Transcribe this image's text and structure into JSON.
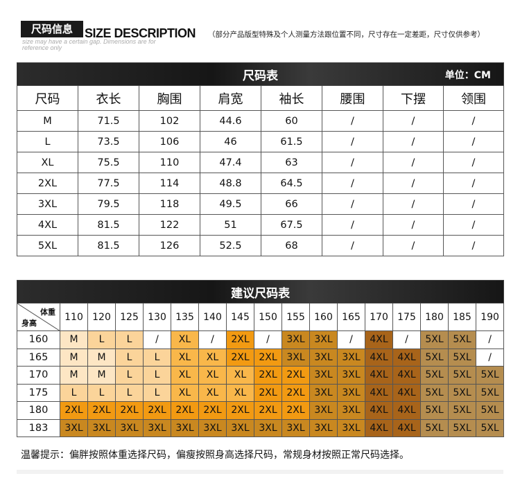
{
  "header": {
    "badge": "尺码信息",
    "title_en": "SIZE DESCRIPTION",
    "note_cn": "（部分产品版型特殊及个人测量方法跟位置不同，尺寸存在一定差距，尺寸仅供参考）",
    "sub_en": "size may have a certain gap. Dimensions are for reference only"
  },
  "size_table": {
    "title": "尺码表",
    "unit": "单位：CM",
    "headers": [
      "尺码",
      "衣长",
      "胸围",
      "肩宽",
      "袖长",
      "腰围",
      "下摆",
      "领围"
    ],
    "rows": [
      [
        "M",
        "71.5",
        "102",
        "44.6",
        "60",
        "/",
        "/",
        "/"
      ],
      [
        "L",
        "73.5",
        "106",
        "46",
        "61.5",
        "/",
        "/",
        "/"
      ],
      [
        "XL",
        "75.5",
        "110",
        "47.4",
        "63",
        "/",
        "/",
        "/"
      ],
      [
        "2XL",
        "77.5",
        "114",
        "48.8",
        "64.5",
        "/",
        "/",
        "/"
      ],
      [
        "3XL",
        "79.5",
        "118",
        "49.5",
        "66",
        "/",
        "/",
        "/"
      ],
      [
        "4XL",
        "81.5",
        "122",
        "51",
        "67.5",
        "/",
        "/",
        "/"
      ],
      [
        "5XL",
        "81.5",
        "126",
        "52.5",
        "68",
        "/",
        "/",
        "/"
      ]
    ]
  },
  "rec_table": {
    "title": "建议尺码表",
    "corner_weight": "体重",
    "corner_height": "身高",
    "weights": [
      "110",
      "120",
      "125",
      "130",
      "135",
      "140",
      "145",
      "150",
      "155",
      "160",
      "165",
      "170",
      "175",
      "180",
      "185",
      "190"
    ],
    "heights": [
      "160",
      "165",
      "170",
      "175",
      "180",
      "183"
    ],
    "grid": [
      [
        "M",
        "L",
        "L",
        "/",
        "XL",
        "/",
        "2XL",
        "/",
        "3XL",
        "3XL",
        "/",
        "4XL",
        "/",
        "5XL",
        "5XL",
        "/"
      ],
      [
        "M",
        "M",
        "L",
        "L",
        "XL",
        "XL",
        "2XL",
        "2XL",
        "3XL",
        "3XL",
        "3XL",
        "4XL",
        "4XL",
        "5XL",
        "5XL",
        "/"
      ],
      [
        "M",
        "M",
        "L",
        "L",
        "XL",
        "XL",
        "XL",
        "2XL",
        "2XL",
        "3XL",
        "3XL",
        "4XL",
        "4XL",
        "5XL",
        "5XL",
        "5XL"
      ],
      [
        "L",
        "L",
        "L",
        "L",
        "XL",
        "XL",
        "XL",
        "2XL",
        "2XL",
        "3XL",
        "3XL",
        "4XL",
        "4XL",
        "5XL",
        "5XL",
        "5XL"
      ],
      [
        "2XL",
        "2XL",
        "2XL",
        "2XL",
        "2XL",
        "2XL",
        "2XL",
        "2XL",
        "2XL",
        "3XL",
        "3XL",
        "4XL",
        "4XL",
        "5XL",
        "5XL",
        "5XL"
      ],
      [
        "3XL",
        "3XL",
        "3XL",
        "3XL",
        "3XL",
        "3XL",
        "3XL",
        "3XL",
        "3XL",
        "3XL",
        "3XL",
        "4XL",
        "4XL",
        "5XL",
        "5XL",
        "5XL"
      ]
    ],
    "size_colors": {
      "M": "#fde6c4",
      "L": "#fbd49a",
      "XL": "#f9b74a",
      "2XL": "#f29a12",
      "3XL": "#c98820",
      "4XL": "#a8641a",
      "5XL": "#b58d4f",
      "/": "#ffffff"
    }
  },
  "note": "温馨提示：偏胖按照体重选择尺码，偏瘦按照身高选择尺码，常规身材按照正常尺码选择。"
}
